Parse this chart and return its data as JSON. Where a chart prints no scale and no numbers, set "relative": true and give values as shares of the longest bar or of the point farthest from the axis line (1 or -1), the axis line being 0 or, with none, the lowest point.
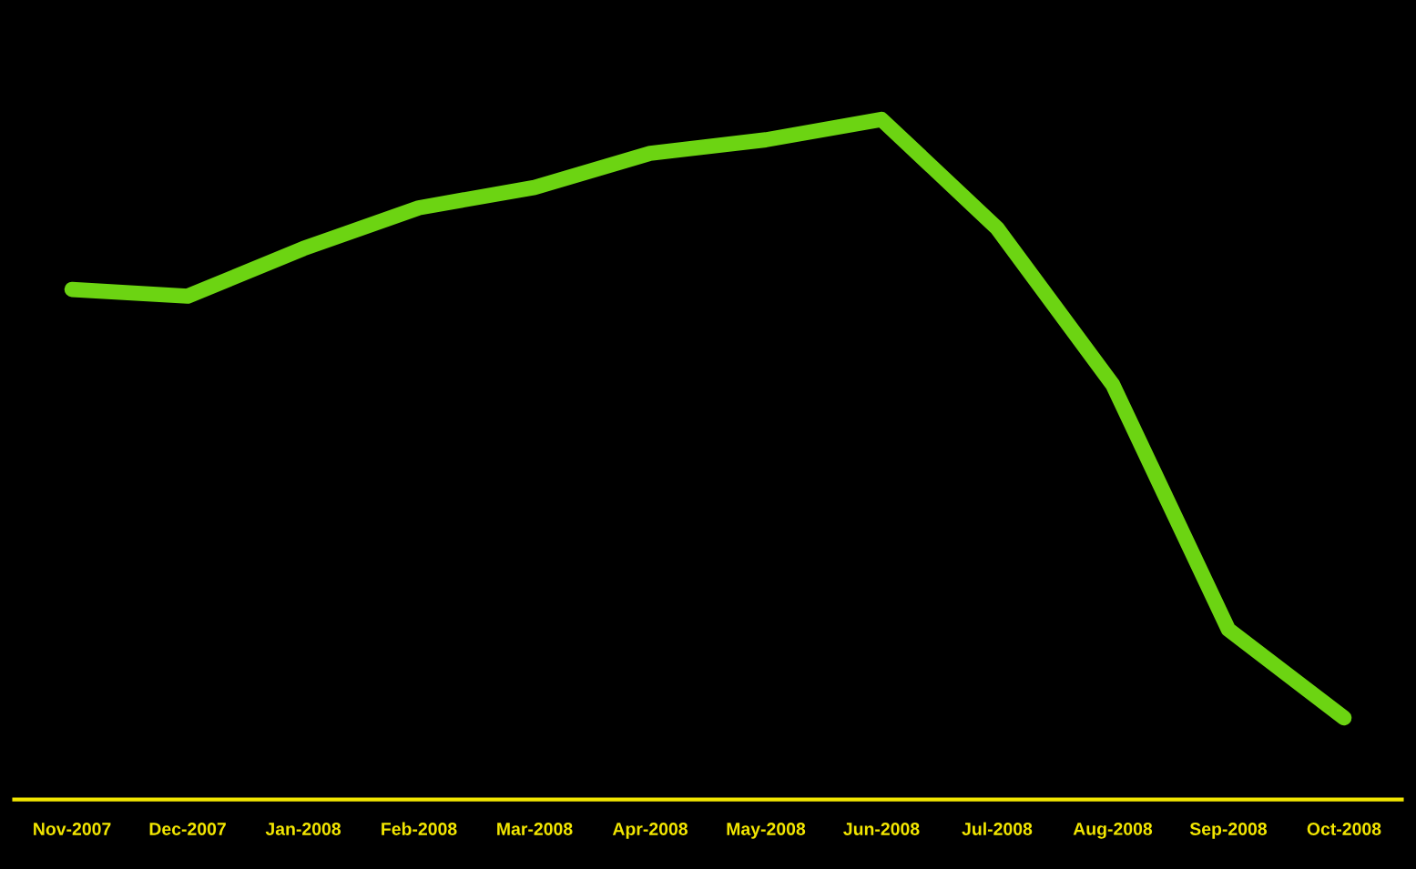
{
  "chart_data": {
    "type": "line",
    "relative": true,
    "tick_labels": "x",
    "grid": false,
    "line_style": "solid",
    "categories": [
      "Nov-2007",
      "Dec-2007",
      "Jan-2008",
      "Feb-2008",
      "Mar-2008",
      "Apr-2008",
      "May-2008",
      "Jun-2008",
      "Jul-2008",
      "Aug-2008",
      "Sep-2008",
      "Oct-2008"
    ],
    "series": [
      {
        "color": "#6cd412",
        "values": [
          0.75,
          0.74,
          0.81,
          0.87,
          0.9,
          0.95,
          0.97,
          1.0,
          0.84,
          0.61,
          0.25,
          0.12
        ]
      }
    ]
  }
}
